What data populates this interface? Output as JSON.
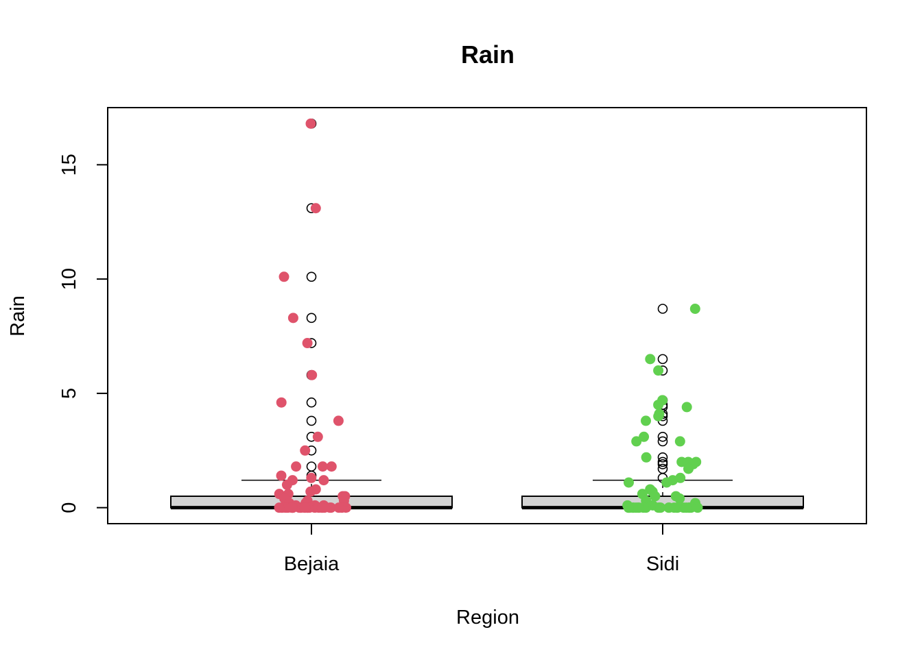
{
  "chart_data": {
    "type": "boxplot",
    "title": "Rain",
    "xlabel": "Region",
    "ylabel": "Rain",
    "categories": [
      "Bejaia",
      "Sidi"
    ],
    "ylim": [
      -0.7,
      17.5
    ],
    "yticks": [
      0,
      5,
      10,
      15
    ],
    "grid": false,
    "legend": "none",
    "boxes": [
      {
        "category": "Bejaia",
        "min": 0,
        "q1": 0,
        "median": 0,
        "q3": 0.5,
        "whisker_high": 1.2,
        "outliers": [
          16.8,
          13.1,
          10.1,
          8.3,
          7.2,
          5.8,
          4.6,
          3.8,
          3.1,
          2.5,
          1.8,
          1.4
        ]
      },
      {
        "category": "Sidi",
        "min": 0,
        "q1": 0,
        "median": 0,
        "q3": 0.5,
        "whisker_high": 1.2,
        "outliers": [
          8.7,
          6.5,
          6.0,
          4.7,
          4.5,
          4.4,
          4.1,
          4.0,
          3.8,
          3.1,
          2.9,
          2.2,
          2.0,
          1.9,
          1.7,
          1.3
        ]
      }
    ],
    "points": [
      {
        "category": "Bejaia",
        "color": "#DF536B",
        "values": [
          16.8,
          13.1,
          10.1,
          8.3,
          7.2,
          5.8,
          4.6,
          3.8,
          3.1,
          2.5,
          1.8,
          1.8,
          1.8,
          1.4,
          1.3,
          1.2,
          1.2,
          1.0,
          0.8,
          0.7,
          0.6,
          0.6,
          0.5,
          0.5,
          0.4,
          0.3,
          0.3,
          0.2,
          0.2,
          0.1,
          0.1,
          0.1,
          0,
          0,
          0,
          0,
          0,
          0,
          0,
          0,
          0,
          0,
          0,
          0,
          0,
          0,
          0,
          0,
          0,
          0,
          0,
          0,
          0,
          0,
          0,
          0,
          0,
          0,
          0,
          0
        ]
      },
      {
        "category": "Sidi",
        "color": "#61D04F",
        "values": [
          8.7,
          6.5,
          6.0,
          4.7,
          4.5,
          4.4,
          4.1,
          4.0,
          3.8,
          3.1,
          2.9,
          2.9,
          2.2,
          2.0,
          2.0,
          2.0,
          1.9,
          1.7,
          1.3,
          1.2,
          1.1,
          1.1,
          0.8,
          0.7,
          0.6,
          0.5,
          0.5,
          0.4,
          0.3,
          0.2,
          0.1,
          0.1,
          0,
          0,
          0,
          0,
          0,
          0,
          0,
          0,
          0,
          0,
          0,
          0,
          0,
          0,
          0,
          0,
          0,
          0,
          0,
          0,
          0,
          0,
          0,
          0
        ]
      }
    ]
  }
}
